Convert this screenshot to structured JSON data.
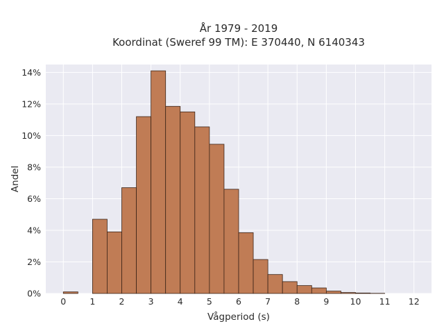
{
  "chart_data": {
    "type": "bar",
    "title": "År 1979 - 2019",
    "subtitle": "Koordinat (Sweref 99 TM): E 370440, N 6140343",
    "xlabel": "Vågperiod (s)",
    "ylabel": "Andel",
    "xlim": [
      -0.6,
      12.6
    ],
    "ylim": [
      0,
      14.5
    ],
    "x_ticks": [
      0,
      1,
      2,
      3,
      4,
      5,
      6,
      7,
      8,
      9,
      10,
      11,
      12
    ],
    "x_tick_labels": [
      "0",
      "1",
      "2",
      "3",
      "4",
      "5",
      "6",
      "7",
      "8",
      "9",
      "10",
      "11",
      "12"
    ],
    "y_ticks": [
      0,
      2,
      4,
      6,
      8,
      10,
      12,
      14
    ],
    "y_tick_labels": [
      "0%",
      "2%",
      "4%",
      "6%",
      "8%",
      "10%",
      "12%",
      "14%"
    ],
    "grid": true,
    "bin_width": 0.5,
    "bins": [
      {
        "start": 0.0,
        "value": 0.1
      },
      {
        "start": 1.0,
        "value": 4.7
      },
      {
        "start": 1.5,
        "value": 3.9
      },
      {
        "start": 2.0,
        "value": 6.7
      },
      {
        "start": 2.5,
        "value": 11.2
      },
      {
        "start": 3.0,
        "value": 14.1
      },
      {
        "start": 3.5,
        "value": 11.85
      },
      {
        "start": 4.0,
        "value": 11.5
      },
      {
        "start": 4.5,
        "value": 10.55
      },
      {
        "start": 5.0,
        "value": 9.45
      },
      {
        "start": 5.5,
        "value": 6.6
      },
      {
        "start": 6.0,
        "value": 3.85
      },
      {
        "start": 6.5,
        "value": 2.15
      },
      {
        "start": 7.0,
        "value": 1.2
      },
      {
        "start": 7.5,
        "value": 0.75
      },
      {
        "start": 8.0,
        "value": 0.5
      },
      {
        "start": 8.5,
        "value": 0.35
      },
      {
        "start": 9.0,
        "value": 0.15
      },
      {
        "start": 9.5,
        "value": 0.06
      },
      {
        "start": 10.0,
        "value": 0.03
      },
      {
        "start": 10.5,
        "value": 0.01
      }
    ],
    "colors": {
      "bar_fill": "#c07c55",
      "bar_edge": "#3b2418",
      "plot_background": "#eaeaf2",
      "grid": "#ffffff"
    }
  }
}
